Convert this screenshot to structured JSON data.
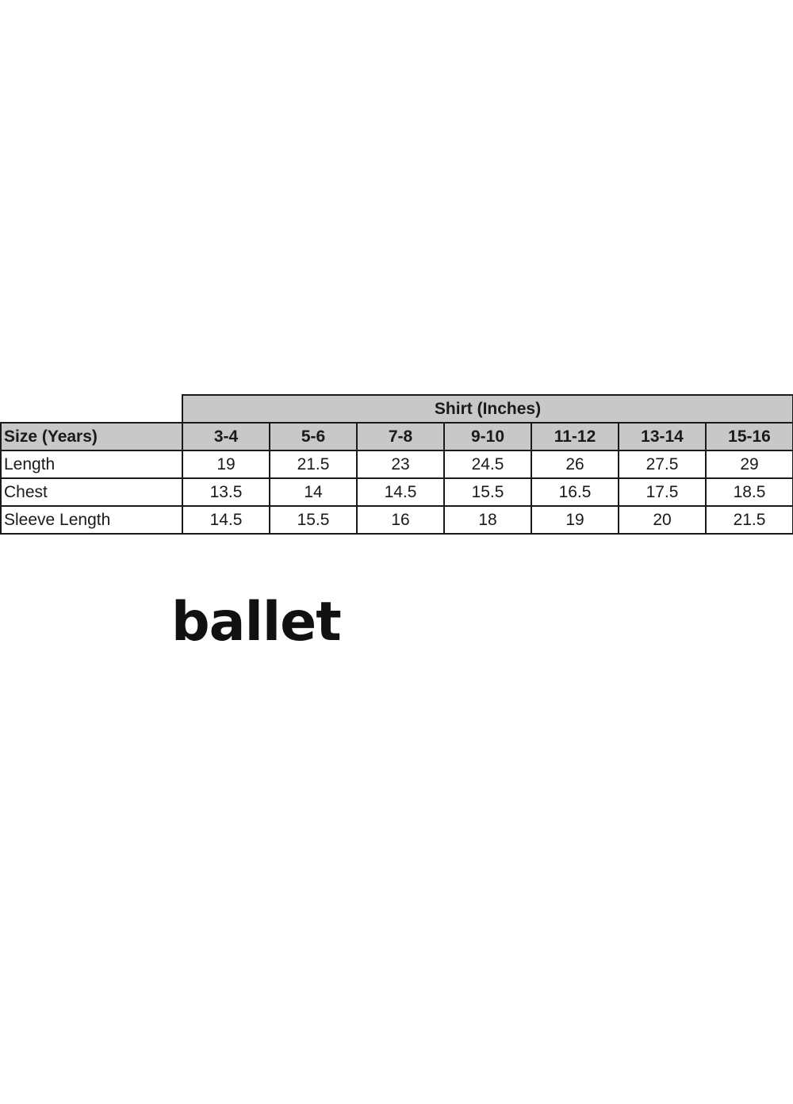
{
  "table": {
    "group_header": "Shirt (Inches)",
    "row_header_label": "Size (Years)",
    "sizes": [
      "3-4",
      "5-6",
      "7-8",
      "9-10",
      "11-12",
      "13-14",
      "15-16"
    ],
    "rows": [
      {
        "label": "Length",
        "values": [
          "19",
          "21.5",
          "23",
          "24.5",
          "26",
          "27.5",
          "29"
        ]
      },
      {
        "label": "Chest",
        "values": [
          "13.5",
          "14",
          "14.5",
          "15.5",
          "16.5",
          "17.5",
          "18.5"
        ]
      },
      {
        "label": "Sleeve Length",
        "values": [
          "14.5",
          "15.5",
          "16",
          "18",
          "19",
          "20",
          "21.5"
        ]
      }
    ],
    "header_color": "#c8c8c8"
  },
  "caption": "ballet"
}
